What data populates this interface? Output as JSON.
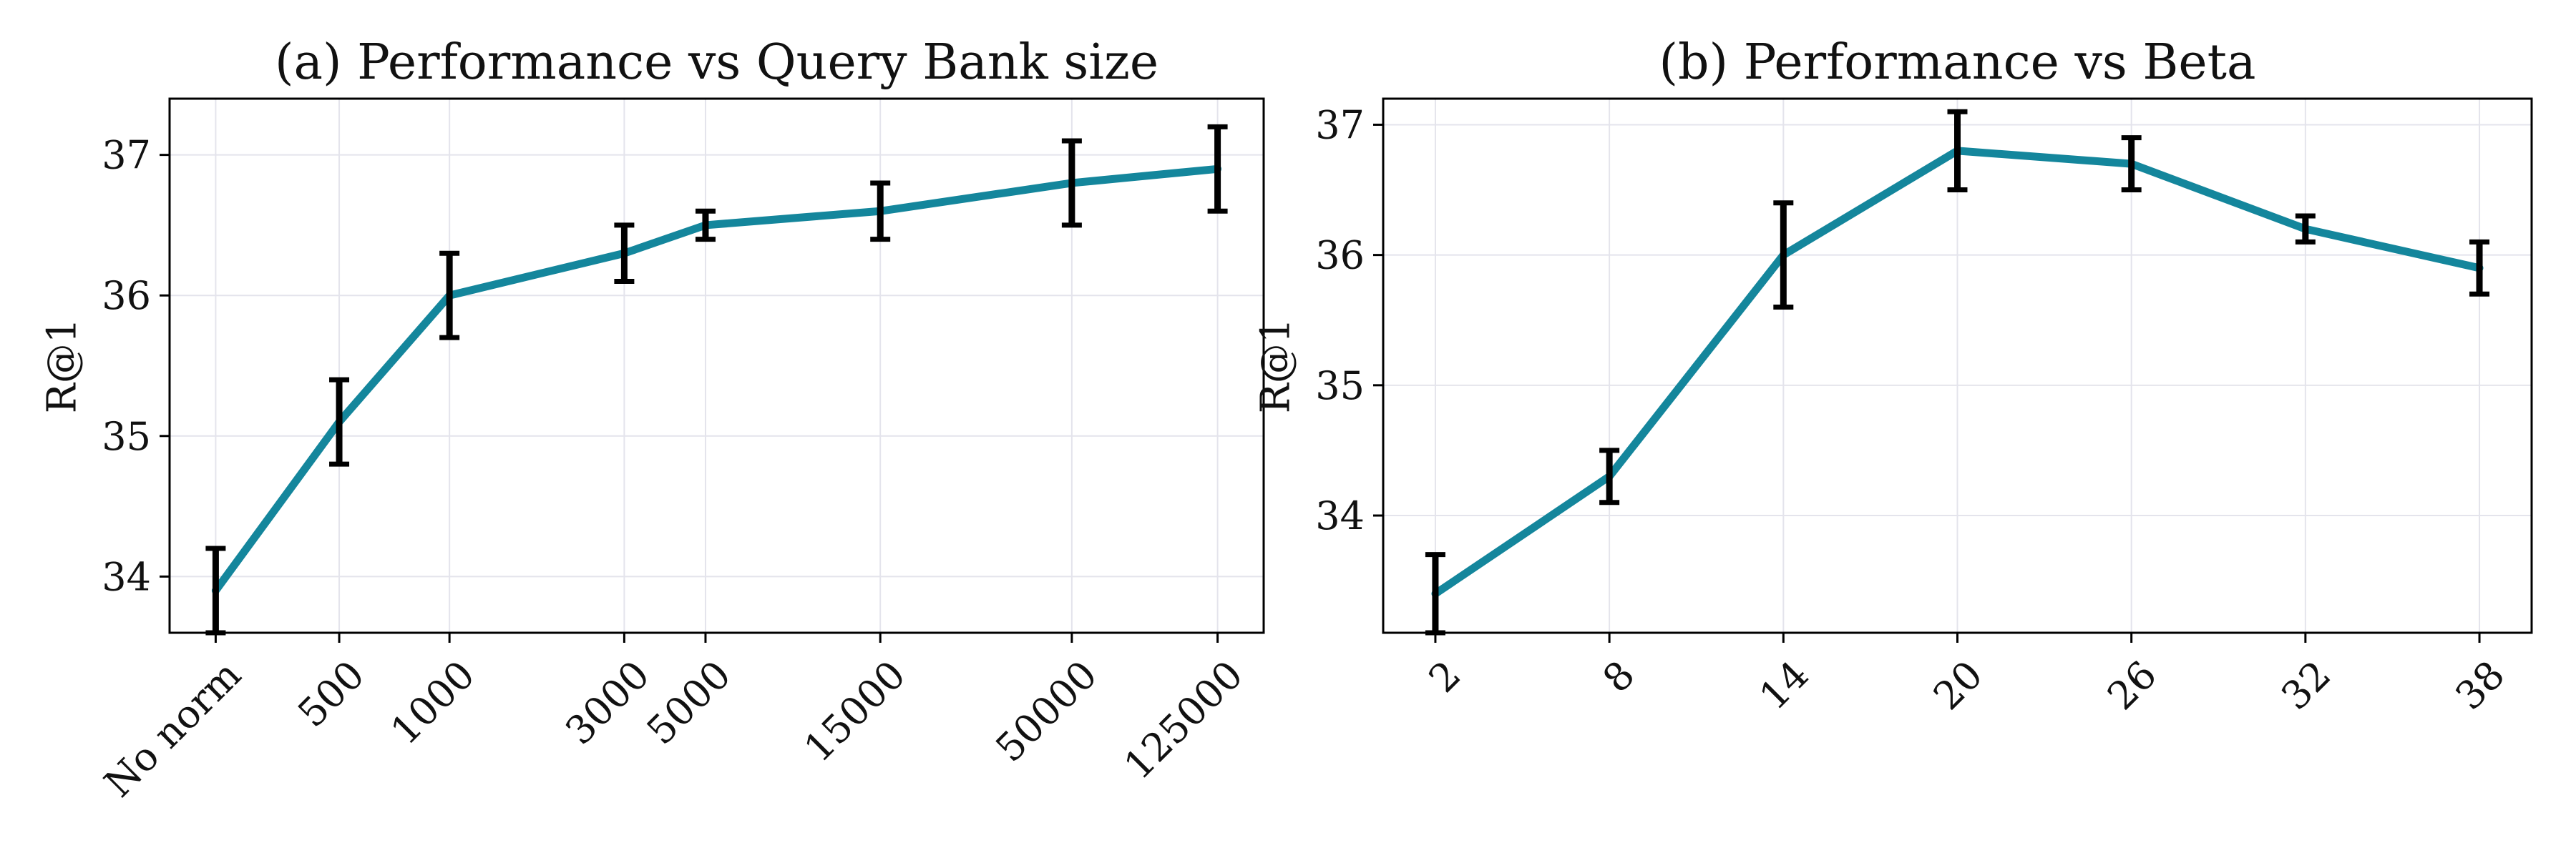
{
  "colors": {
    "line": "#14869c",
    "error_bar": "#000000",
    "grid": "#e4e4ec",
    "frame": "#000000"
  },
  "chart_data": [
    {
      "type": "line",
      "title": "(a) Performance vs Query Bank size",
      "xlabel": "",
      "ylabel": "R@1",
      "x_scale": "log",
      "categories": [
        "No norm",
        "500",
        "1000",
        "3000",
        "5000",
        "15000",
        "50000",
        "125000"
      ],
      "x": [
        230,
        500,
        1000,
        3000,
        5000,
        15000,
        50000,
        125000
      ],
      "ylim": [
        33.6,
        37.4
      ],
      "yticks": [
        34,
        35,
        36,
        37
      ],
      "grid": true,
      "series": [
        {
          "values": [
            33.9,
            35.1,
            36.0,
            36.3,
            36.5,
            36.6,
            36.8,
            36.9
          ],
          "error": [
            0.3,
            0.3,
            0.3,
            0.2,
            0.1,
            0.2,
            0.3,
            0.3
          ]
        }
      ]
    },
    {
      "type": "line",
      "title": "(b) Performance vs Beta",
      "xlabel": "",
      "ylabel": "R@1",
      "x_scale": "linear",
      "categories": [
        "2",
        "8",
        "14",
        "20",
        "26",
        "32",
        "38"
      ],
      "x": [
        2,
        8,
        14,
        20,
        26,
        32,
        38
      ],
      "xlim": [
        0.2,
        39.8
      ],
      "ylim": [
        33.1,
        37.2
      ],
      "yticks": [
        34,
        35,
        36,
        37
      ],
      "grid": true,
      "series": [
        {
          "values": [
            33.4,
            34.3,
            36.0,
            36.8,
            36.7,
            36.2,
            35.9
          ],
          "error": [
            0.3,
            0.2,
            0.4,
            0.3,
            0.2,
            0.1,
            0.2
          ]
        }
      ]
    }
  ]
}
